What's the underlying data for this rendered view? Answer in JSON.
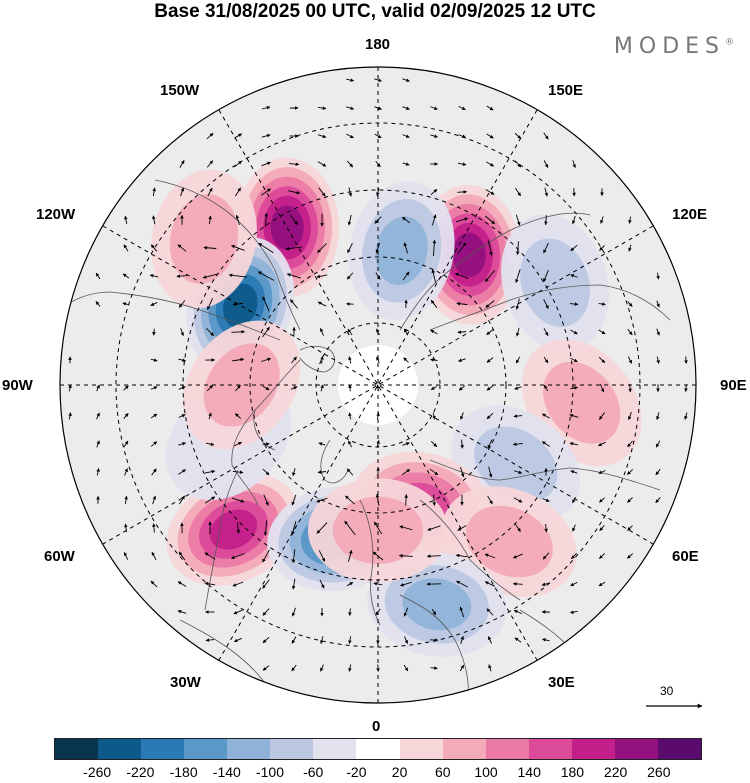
{
  "title": "Base 31/08/2025 00 UTC, valid 02/09/2025 12 UTC",
  "brand": "MODES",
  "brand_mark": "®",
  "longitude_labels": {
    "top": "180",
    "bottom": "0",
    "left": "90W",
    "right": "90E",
    "upper_left_1": "150W",
    "upper_left_2": "120W",
    "upper_right_1": "150E",
    "upper_right_2": "120E",
    "lower_left_1": "60W",
    "lower_left_2": "30W",
    "lower_right_1": "60E",
    "lower_right_2": "30E"
  },
  "reference_vector": {
    "value": "30"
  },
  "colorbar": {
    "colors": [
      "#08344f",
      "#0d5a8a",
      "#2a7ab5",
      "#5a98c8",
      "#8fb3d8",
      "#bcc8e2",
      "#e2e2ef",
      "#ffffff",
      "#f7d6d9",
      "#f3aab9",
      "#ea7aa4",
      "#dc4a9a",
      "#c21f8a",
      "#93117e",
      "#5b0a6e"
    ],
    "labels": [
      "-260",
      "-220",
      "-180",
      "-140",
      "-100",
      "-60",
      "-20",
      "20",
      "60",
      "100",
      "140",
      "180",
      "220",
      "260"
    ]
  },
  "anomalies": [
    {
      "lon": 145,
      "lat": 55,
      "value": 230
    },
    {
      "lon": 170,
      "lat": 60,
      "value": -130
    },
    {
      "lon": -150,
      "lat": 50,
      "value": 220
    },
    {
      "lon": -120,
      "lat": 55,
      "value": -230
    },
    {
      "lon": -130,
      "lat": 40,
      "value": 70
    },
    {
      "lon": 120,
      "lat": 45,
      "value": -90
    },
    {
      "lon": 85,
      "lat": 45,
      "value": 60
    },
    {
      "lon": 60,
      "lat": 55,
      "value": -90
    },
    {
      "lon": -45,
      "lat": 45,
      "value": 200
    },
    {
      "lon": -15,
      "lat": 55,
      "value": -210
    },
    {
      "lon": 20,
      "lat": 62,
      "value": 140
    },
    {
      "lon": 40,
      "lat": 45,
      "value": 70
    },
    {
      "lon": 15,
      "lat": 40,
      "value": -120
    },
    {
      "lon": -70,
      "lat": 55,
      "value": -40
    },
    {
      "lon": -90,
      "lat": 60,
      "value": 60
    },
    {
      "lon": 0,
      "lat": 58,
      "value": 90
    }
  ]
}
